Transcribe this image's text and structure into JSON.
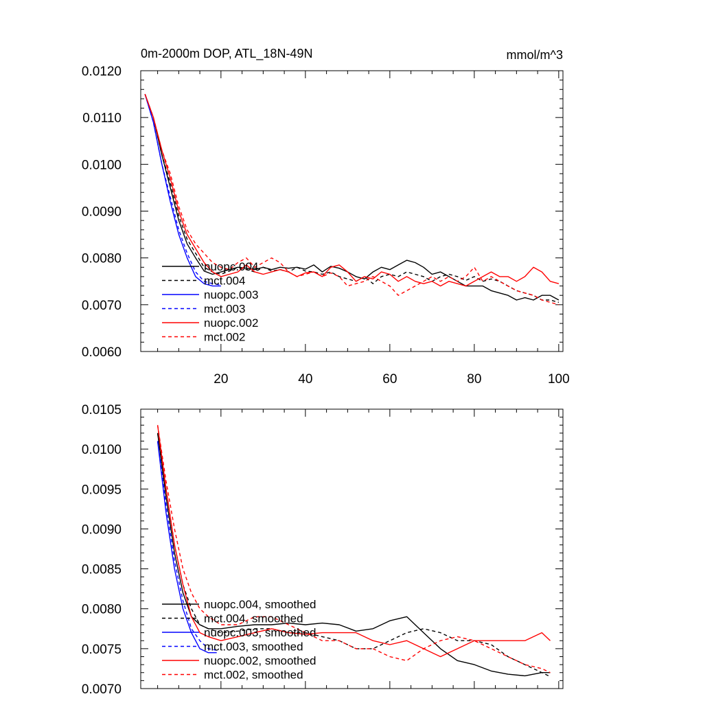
{
  "chart_data": [
    {
      "type": "line",
      "title": "0m-2000m DOP, ATL_18N-49N",
      "units": "mmol/m^3",
      "xlim": [
        1,
        101
      ],
      "ylim": [
        0.006,
        0.012
      ],
      "xticks": [
        20,
        40,
        60,
        80,
        100
      ],
      "xtick_labels": [
        "20",
        "40",
        "60",
        "80",
        "100"
      ],
      "yticks": [
        0.006,
        0.007,
        0.008,
        0.009,
        0.01,
        0.011,
        0.012
      ],
      "ytick_labels": [
        "0.0060",
        "0.0070",
        "0.0080",
        "0.0090",
        "0.0100",
        "0.0110",
        "0.0120"
      ],
      "series": [
        {
          "name": "nuopc.004",
          "color": "#000000",
          "dash": "solid",
          "x": [
            2,
            4,
            6,
            8,
            10,
            12,
            14,
            16,
            18,
            20,
            22,
            24,
            26,
            28,
            30,
            32,
            34,
            36,
            38,
            40,
            42,
            44,
            46,
            48,
            50,
            52,
            54,
            56,
            58,
            60,
            62,
            64,
            66,
            68,
            70,
            72,
            74,
            76,
            78,
            80,
            82,
            84,
            86,
            88,
            90,
            92,
            94,
            96,
            98,
            100
          ],
          "y": [
            0.0115,
            0.011,
            0.0102,
            0.0095,
            0.0088,
            0.0083,
            0.008,
            0.00772,
            0.00765,
            0.0077,
            0.00775,
            0.0078,
            0.00778,
            0.00775,
            0.0078,
            0.00775,
            0.0078,
            0.00778,
            0.0078,
            0.00776,
            0.00785,
            0.0077,
            0.00782,
            0.00778,
            0.0077,
            0.0076,
            0.00755,
            0.0077,
            0.0078,
            0.00775,
            0.00785,
            0.00795,
            0.0079,
            0.0078,
            0.00765,
            0.0077,
            0.0076,
            0.0075,
            0.0074,
            0.0074,
            0.0074,
            0.0073,
            0.00725,
            0.0072,
            0.0071,
            0.00715,
            0.0071,
            0.0072,
            0.0072,
            0.0071
          ]
        },
        {
          "name": "mct.004",
          "color": "#000000",
          "dash": "dashed",
          "x": [
            2,
            4,
            6,
            8,
            10,
            12,
            14,
            16,
            18,
            20,
            22,
            24,
            26,
            28,
            30,
            32,
            34,
            36,
            38,
            40,
            42,
            44,
            46,
            48,
            50,
            52,
            54,
            56,
            58,
            60,
            62,
            64,
            66,
            68,
            70,
            72,
            74,
            76,
            78,
            80,
            82,
            84,
            86,
            88,
            90,
            92,
            94,
            96,
            98,
            100
          ],
          "y": [
            0.0115,
            0.011,
            0.0102,
            0.0096,
            0.0089,
            0.0084,
            0.0081,
            0.0078,
            0.0077,
            0.00765,
            0.00772,
            0.0078,
            0.00775,
            0.0077,
            0.0078,
            0.00772,
            0.00775,
            0.0077,
            0.0078,
            0.00772,
            0.0077,
            0.00765,
            0.0077,
            0.0076,
            0.00755,
            0.0075,
            0.0076,
            0.00745,
            0.0076,
            0.00765,
            0.0076,
            0.0077,
            0.00765,
            0.0076,
            0.0075,
            0.0076,
            0.00765,
            0.0076,
            0.00752,
            0.0076,
            0.0075,
            0.00755,
            0.0075,
            0.0074,
            0.0073,
            0.00725,
            0.0072,
            0.0071,
            0.0071,
            0.00705
          ]
        },
        {
          "name": "nuopc.003",
          "color": "#0000ff",
          "dash": "solid",
          "x": [
            2,
            4,
            6,
            8,
            10,
            12,
            14,
            16,
            18,
            20
          ],
          "y": [
            0.0115,
            0.0109,
            0.01,
            0.0092,
            0.0085,
            0.008,
            0.0076,
            0.00745,
            0.0074,
            0.0074
          ]
        },
        {
          "name": "mct.003",
          "color": "#0000ff",
          "dash": "dashed",
          "x": [
            2,
            4,
            6,
            8,
            10,
            12,
            14,
            16,
            18,
            20
          ],
          "y": [
            0.0115,
            0.0109,
            0.01,
            0.0093,
            0.0086,
            0.0081,
            0.0077,
            0.0075,
            0.00745,
            0.00742
          ]
        },
        {
          "name": "nuopc.002",
          "color": "#ff0000",
          "dash": "solid",
          "x": [
            2,
            4,
            6,
            8,
            10,
            12,
            14,
            16,
            18,
            20,
            22,
            24,
            26,
            28,
            30,
            32,
            34,
            36,
            38,
            40,
            42,
            44,
            46,
            48,
            50,
            52,
            54,
            56,
            58,
            60,
            62,
            64,
            66,
            68,
            70,
            72,
            74,
            76,
            78,
            80,
            82,
            84,
            86,
            88,
            90,
            92,
            94,
            96,
            98,
            100
          ],
          "y": [
            0.0115,
            0.011,
            0.0103,
            0.0097,
            0.009,
            0.0085,
            0.0082,
            0.0079,
            0.0077,
            0.0076,
            0.00765,
            0.0077,
            0.00785,
            0.0077,
            0.00765,
            0.0077,
            0.00775,
            0.0077,
            0.0076,
            0.00768,
            0.0077,
            0.0076,
            0.0078,
            0.00785,
            0.0077,
            0.0075,
            0.0076,
            0.00755,
            0.0077,
            0.00765,
            0.0075,
            0.0076,
            0.0075,
            0.00745,
            0.0075,
            0.0074,
            0.0075,
            0.00745,
            0.0074,
            0.0075,
            0.0076,
            0.0077,
            0.0076,
            0.0076,
            0.0075,
            0.0076,
            0.0078,
            0.0077,
            0.0075,
            0.00745
          ]
        },
        {
          "name": "mct.002",
          "color": "#ff0000",
          "dash": "dashed",
          "x": [
            2,
            4,
            6,
            8,
            10,
            12,
            14,
            16,
            18,
            20,
            22,
            24,
            26,
            28,
            30,
            32,
            34,
            36,
            38,
            40,
            42,
            44,
            46,
            48,
            50,
            52,
            54,
            56,
            58,
            60,
            62,
            64,
            66,
            68,
            70,
            72,
            74,
            76,
            78,
            80,
            82,
            84,
            86,
            88,
            90,
            92,
            94,
            96,
            98,
            100
          ],
          "y": [
            0.0115,
            0.011,
            0.0103,
            0.0098,
            0.0091,
            0.0086,
            0.0083,
            0.0081,
            0.0079,
            0.0078,
            0.00775,
            0.0079,
            0.008,
            0.0078,
            0.0079,
            0.008,
            0.0079,
            0.0077,
            0.0076,
            0.00765,
            0.0077,
            0.0076,
            0.00768,
            0.0076,
            0.0074,
            0.00745,
            0.0075,
            0.0076,
            0.0075,
            0.0074,
            0.0072,
            0.0073,
            0.0074,
            0.0075,
            0.0076,
            0.0075,
            0.0076,
            0.0075,
            0.0076,
            0.0078,
            0.0075,
            0.0076,
            0.0075,
            0.0074,
            0.0073,
            0.00725,
            0.0072,
            0.0071,
            0.00705,
            0.007
          ]
        }
      ],
      "legend": [
        "nuopc.004",
        "mct.004",
        "nuopc.003",
        "mct.003",
        "nuopc.002",
        "mct.002"
      ]
    },
    {
      "type": "line",
      "title": "",
      "xlim": [
        1,
        101
      ],
      "ylim": [
        0.007,
        0.0105
      ],
      "xticks": [
        20,
        40,
        60,
        80,
        100
      ],
      "xtick_labels": [],
      "yticks": [
        0.007,
        0.0075,
        0.008,
        0.0085,
        0.009,
        0.0095,
        0.01,
        0.0105
      ],
      "ytick_labels": [
        "0.0070",
        "0.0075",
        "0.0080",
        "0.0085",
        "0.0090",
        "0.0095",
        "0.0100",
        "0.0105"
      ],
      "series": [
        {
          "name": "nuopc.004, smoothed",
          "color": "#000000",
          "dash": "solid",
          "x": [
            5,
            7,
            9,
            11,
            13,
            15,
            17,
            20,
            24,
            28,
            32,
            36,
            40,
            44,
            48,
            52,
            56,
            60,
            64,
            66,
            68,
            72,
            76,
            80,
            84,
            88,
            92,
            96,
            98
          ],
          "y": [
            0.0102,
            0.0094,
            0.0087,
            0.0082,
            0.0079,
            0.0078,
            0.00775,
            0.00775,
            0.00778,
            0.0078,
            0.0078,
            0.00782,
            0.0078,
            0.00782,
            0.0078,
            0.00772,
            0.00775,
            0.00785,
            0.0079,
            0.0078,
            0.0077,
            0.0075,
            0.00735,
            0.0073,
            0.00722,
            0.00718,
            0.00716,
            0.0072,
            0.0072
          ]
        },
        {
          "name": "mct.004, smoothed",
          "color": "#000000",
          "dash": "dashed",
          "x": [
            5,
            7,
            9,
            11,
            13,
            15,
            17,
            20,
            24,
            28,
            32,
            36,
            40,
            44,
            48,
            52,
            56,
            60,
            64,
            68,
            72,
            76,
            80,
            84,
            88,
            92,
            96,
            98
          ],
          "y": [
            0.0102,
            0.0095,
            0.0088,
            0.0083,
            0.008,
            0.0078,
            0.00775,
            0.0077,
            0.00772,
            0.00775,
            0.00775,
            0.0077,
            0.0077,
            0.00765,
            0.0076,
            0.0075,
            0.0075,
            0.0076,
            0.0077,
            0.00775,
            0.0077,
            0.0076,
            0.0076,
            0.00755,
            0.0074,
            0.0073,
            0.0072,
            0.00715
          ]
        },
        {
          "name": "nuopc.003, smoothed",
          "color": "#0000ff",
          "dash": "solid",
          "x": [
            5,
            7,
            9,
            11,
            13,
            15,
            17,
            19
          ],
          "y": [
            0.0101,
            0.0092,
            0.0085,
            0.008,
            0.0077,
            0.0075,
            0.00745,
            0.00745
          ]
        },
        {
          "name": "mct.003, smoothed",
          "color": "#0000ff",
          "dash": "dashed",
          "x": [
            5,
            7,
            9,
            11,
            13,
            15,
            17,
            19
          ],
          "y": [
            0.0101,
            0.0093,
            0.0086,
            0.0081,
            0.00775,
            0.0076,
            0.0075,
            0.00748
          ]
        },
        {
          "name": "nuopc.002, smoothed",
          "color": "#ff0000",
          "dash": "solid",
          "x": [
            5,
            7,
            9,
            11,
            13,
            15,
            17,
            20,
            24,
            28,
            32,
            36,
            40,
            44,
            48,
            52,
            56,
            60,
            64,
            68,
            72,
            76,
            80,
            84,
            88,
            92,
            96,
            98
          ],
          "y": [
            0.0103,
            0.0095,
            0.0088,
            0.0083,
            0.0079,
            0.0077,
            0.00765,
            0.0076,
            0.00765,
            0.0077,
            0.00775,
            0.0077,
            0.00768,
            0.0077,
            0.0077,
            0.0077,
            0.0076,
            0.00755,
            0.0076,
            0.0075,
            0.0074,
            0.0075,
            0.0076,
            0.0076,
            0.0076,
            0.0076,
            0.0077,
            0.0076
          ]
        },
        {
          "name": "mct.002, smoothed",
          "color": "#ff0000",
          "dash": "dashed",
          "x": [
            5,
            7,
            9,
            11,
            13,
            15,
            17,
            20,
            24,
            28,
            32,
            36,
            40,
            44,
            48,
            52,
            56,
            60,
            64,
            68,
            72,
            76,
            80,
            84,
            88,
            92,
            96,
            98
          ],
          "y": [
            0.0103,
            0.0096,
            0.009,
            0.0085,
            0.0082,
            0.008,
            0.0079,
            0.0078,
            0.0078,
            0.0079,
            0.0079,
            0.0078,
            0.0077,
            0.0076,
            0.0076,
            0.0075,
            0.0075,
            0.0074,
            0.00735,
            0.0075,
            0.0076,
            0.00765,
            0.0076,
            0.0075,
            0.0074,
            0.0073,
            0.00725,
            0.0072
          ]
        }
      ],
      "legend": [
        "nuopc.004, smoothed",
        "mct.004, smoothed",
        "nuopc.003, smoothed",
        "mct.003, smoothed",
        "nuopc.002, smoothed",
        "mct.002, smoothed"
      ]
    }
  ]
}
